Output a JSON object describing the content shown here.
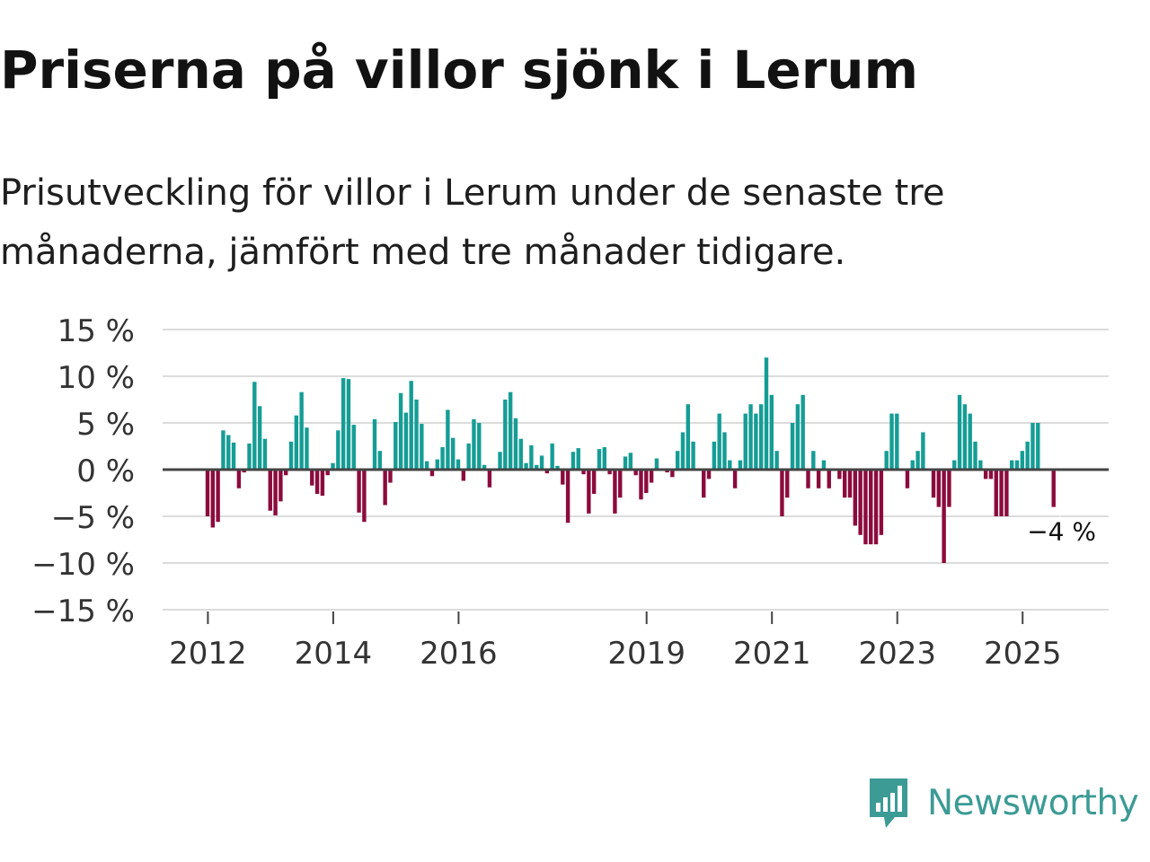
{
  "header": {
    "title": "Priserna på villor sjönk i Lerum",
    "subtitle": "Prisutveckling för villor i Lerum under de senaste tre månaderna, jämfört med tre månader tidigare."
  },
  "brand": {
    "name": "Newsworthy",
    "icon": "newsworthy-logo-icon",
    "color": "#3c9b95"
  },
  "colors": {
    "positive": "#159d95",
    "negative": "#8b0b3d",
    "grid": "#dcdcdc",
    "zero": "#444444",
    "axis_text": "#333333"
  },
  "chart_data": {
    "type": "bar",
    "title": "Priserna på villor sjönk i Lerum",
    "xlabel": "",
    "ylabel": "",
    "ylim": [
      -15,
      15
    ],
    "yticks": [
      15,
      10,
      5,
      0,
      -5,
      -10,
      -15
    ],
    "ytick_labels": [
      "15 %",
      "10 %",
      "5 %",
      "0 %",
      "−5 %",
      "−10 %",
      "−15 %"
    ],
    "xticks": [
      "2012",
      "2014",
      "2016",
      "2019",
      "2021",
      "2023",
      "2025"
    ],
    "start": "2012-01",
    "end": "2025-09",
    "unit": "%",
    "last_label": "−4 %",
    "grid": true,
    "values": [
      -5,
      -6.2,
      -5.6,
      4.2,
      3.7,
      2.9,
      -2,
      -0.3,
      2.8,
      9.4,
      6.8,
      3.3,
      -4.4,
      -4.9,
      -3.4,
      -0.6,
      3,
      5.8,
      8.3,
      4.5,
      -1.7,
      -2.6,
      -2.8,
      -0.6,
      0.7,
      4.2,
      9.8,
      9.7,
      4.8,
      -4.6,
      -5.6,
      0,
      5.4,
      2,
      -3.8,
      -1.4,
      5.1,
      8.2,
      6.1,
      9.5,
      7.5,
      4.9,
      0.9,
      -0.7,
      1.1,
      2.4,
      6.4,
      3.4,
      1.1,
      -1.2,
      2.8,
      5.4,
      5,
      0.5,
      -1.9,
      0,
      1.9,
      7.5,
      8.3,
      5.5,
      3.3,
      0.7,
      2.6,
      0.5,
      1.5,
      -0.4,
      2.8,
      0.4,
      -1.6,
      -5.7,
      1.9,
      2.3,
      -0.5,
      -4.7,
      -2.6,
      2.2,
      2.4,
      -0.5,
      -4.7,
      -3,
      1.4,
      1.8,
      -0.6,
      -3.2,
      -2.5,
      -1.4,
      1.2,
      0,
      -0.3,
      -0.8,
      2,
      4,
      7,
      3,
      0,
      -3,
      -1,
      3,
      6,
      4,
      1,
      -2,
      1,
      6,
      7,
      6,
      7,
      12,
      8,
      2,
      -5,
      -3,
      5,
      7,
      8,
      -2,
      2,
      -2,
      1,
      -2,
      0,
      -1,
      -3,
      -3,
      -6,
      -7,
      -8,
      -8,
      -8,
      -7,
      2,
      6,
      6,
      0,
      -2,
      1,
      2,
      4,
      0,
      -3,
      -4,
      -10,
      -4,
      1,
      8,
      7,
      6,
      3,
      1,
      -1,
      -1,
      -5,
      -5,
      -5,
      1,
      1,
      2,
      3,
      5,
      5,
      0,
      0,
      -4
    ]
  }
}
